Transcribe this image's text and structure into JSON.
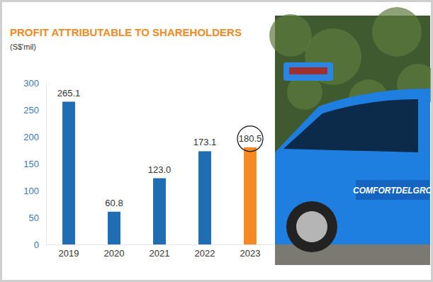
{
  "chart_data": {
    "type": "bar",
    "title": "PROFIT ATTRIBUTABLE TO SHAREHOLDERS",
    "subtitle": "(S$'mil)",
    "categories": [
      "2019",
      "2020",
      "2021",
      "2022",
      "2023"
    ],
    "values": [
      265.1,
      60.8,
      123.0,
      173.1,
      180.5
    ],
    "value_labels": [
      "265.1",
      "60.8",
      "123.0",
      "173.1",
      "180.5"
    ],
    "colors": [
      "#1f6db3",
      "#1f6db3",
      "#1f6db3",
      "#1f6db3",
      "#f58a25"
    ],
    "ylim": [
      0,
      300
    ],
    "yticks": [
      0,
      50,
      100,
      150,
      200,
      250,
      300
    ],
    "grid": false,
    "data_labels": true,
    "annotations": [
      "COMFORTDELGRO"
    ]
  }
}
